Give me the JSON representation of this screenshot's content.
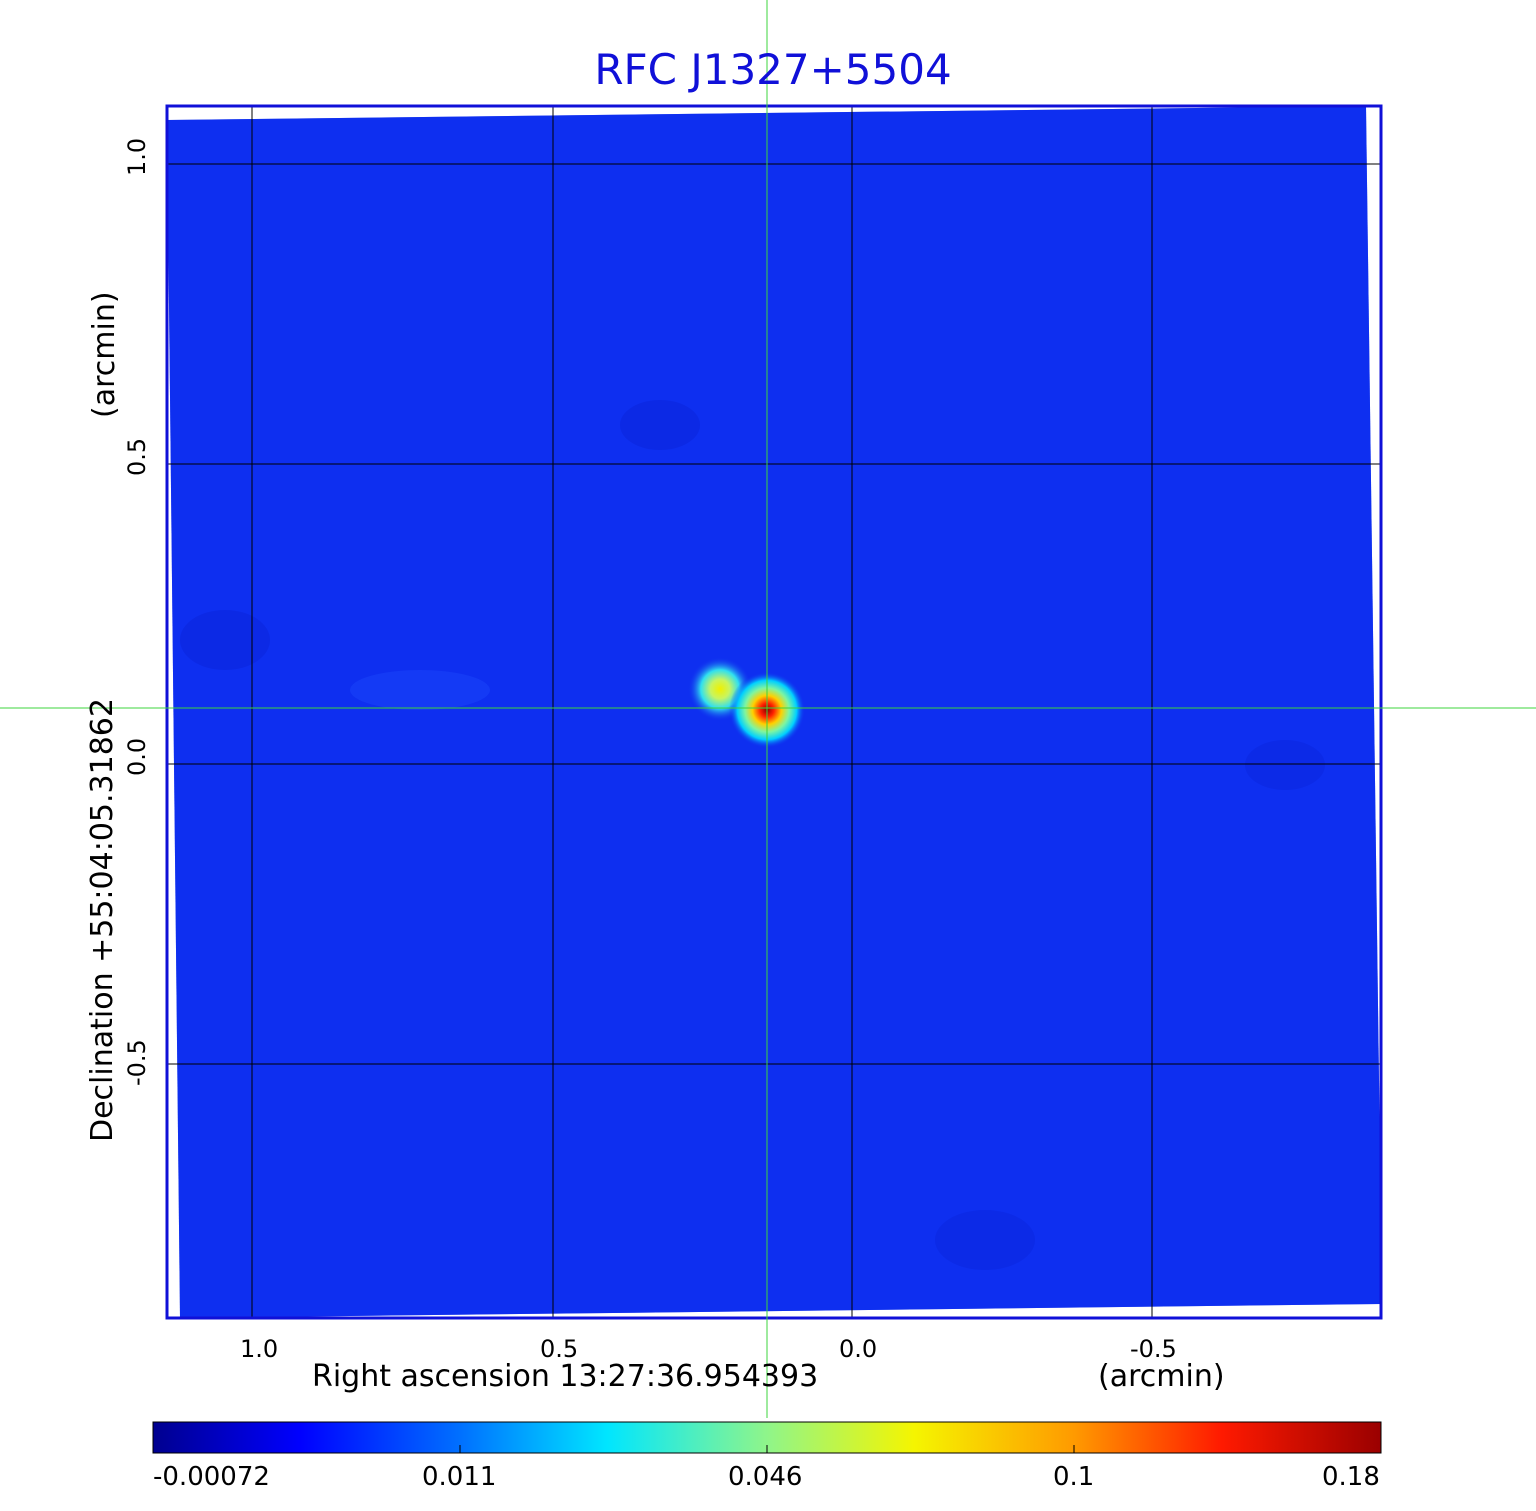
{
  "title": "RFC J1327+5504",
  "axes": {
    "xlabel": "Right ascension  13:27:36.954393",
    "xunit": "(arcmin)",
    "ylabel": "Declination  +55:04:05.31862",
    "yunit": "(arcmin)",
    "x_ticks": [
      "1.0",
      "0.5",
      "0.0",
      "-0.5"
    ],
    "y_ticks": [
      "1.0",
      "0.5",
      "0.0",
      "-0.5"
    ],
    "x_range_arcmin": [
      1.15,
      -0.87
    ],
    "y_range_arcmin": [
      1.1,
      -0.93
    ],
    "grid": true
  },
  "sources": [
    {
      "label": "primary component",
      "x_arcmin": 0.14,
      "y_arcmin": 0.09,
      "peak": 0.18
    },
    {
      "label": "secondary component",
      "x_arcmin": 0.22,
      "y_arcmin": 0.13,
      "peak": 0.07
    }
  ],
  "crosshair": {
    "x_arcmin": 0.14,
    "y_arcmin": 0.09,
    "color": "#3cd43c"
  },
  "colorbar": {
    "ticks": [
      "-0.00072",
      "0.011",
      "0.046",
      "0.1",
      "0.18"
    ],
    "colormap": "jet"
  },
  "colors": {
    "frame": "#1010d8",
    "background_map": "#0f2ff0",
    "grid": "#000000"
  }
}
